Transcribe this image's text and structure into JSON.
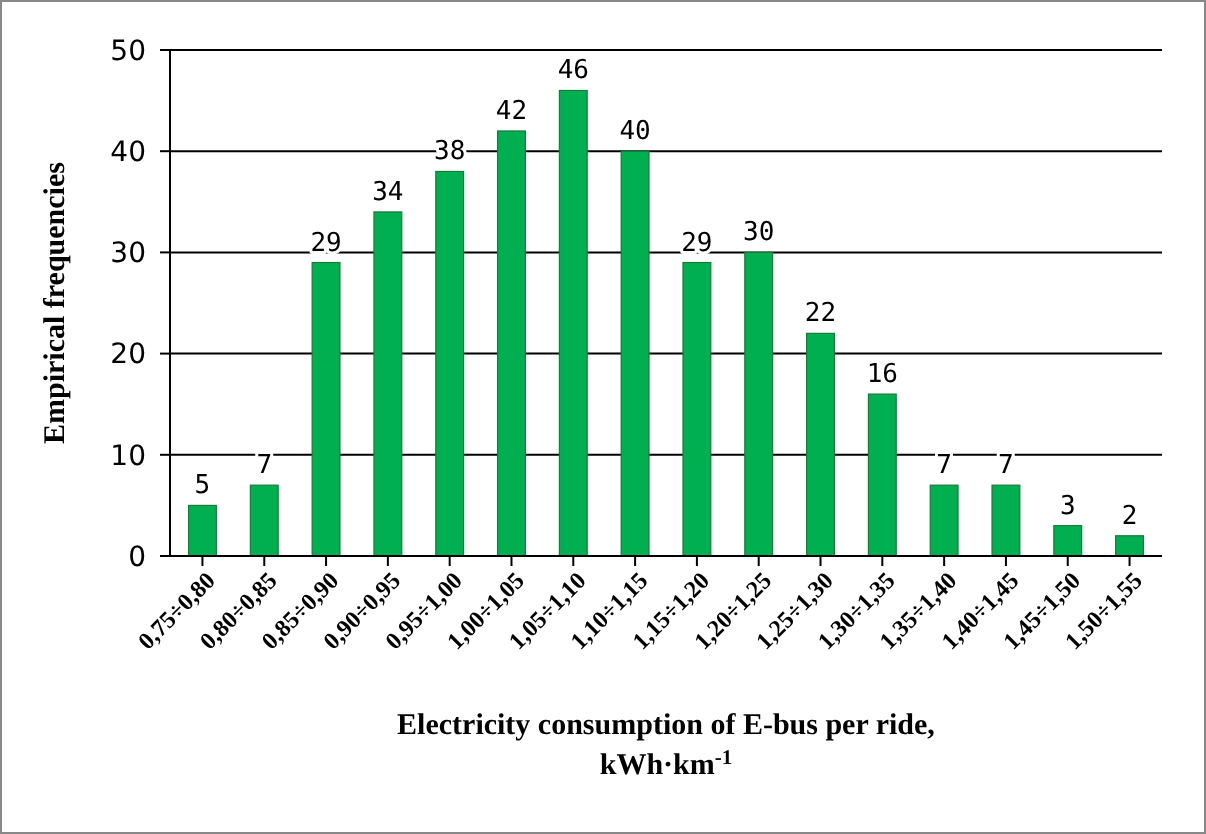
{
  "chart_data": {
    "type": "bar",
    "xlabel": "Electricity consumption of E-bus per ride, kWh·km$^{-1}$",
    "ylabel": "Empirical frequencies",
    "categories": [
      "0,75÷0,80",
      "0,80÷0,85",
      "0,85÷0,90",
      "0,90÷0,95",
      "0,95÷1,00",
      "1,00÷1,05",
      "1,05÷1,10",
      "1,10÷1,15",
      "1,15÷1,20",
      "1,20÷1,25",
      "1,25÷1,30",
      "1,30÷1,35",
      "1,35÷1,40",
      "1,40÷1,45",
      "1,45÷1,50",
      "1,50÷1,55"
    ],
    "values": [
      5,
      7,
      29,
      34,
      38,
      42,
      46,
      40,
      29,
      30,
      22,
      16,
      7,
      7,
      3,
      2
    ],
    "color": "#00b050",
    "ylim": [
      0,
      50
    ],
    "yticks": [
      0,
      10,
      20,
      30,
      40,
      50
    ],
    "grid": "y",
    "data_labels": true
  }
}
